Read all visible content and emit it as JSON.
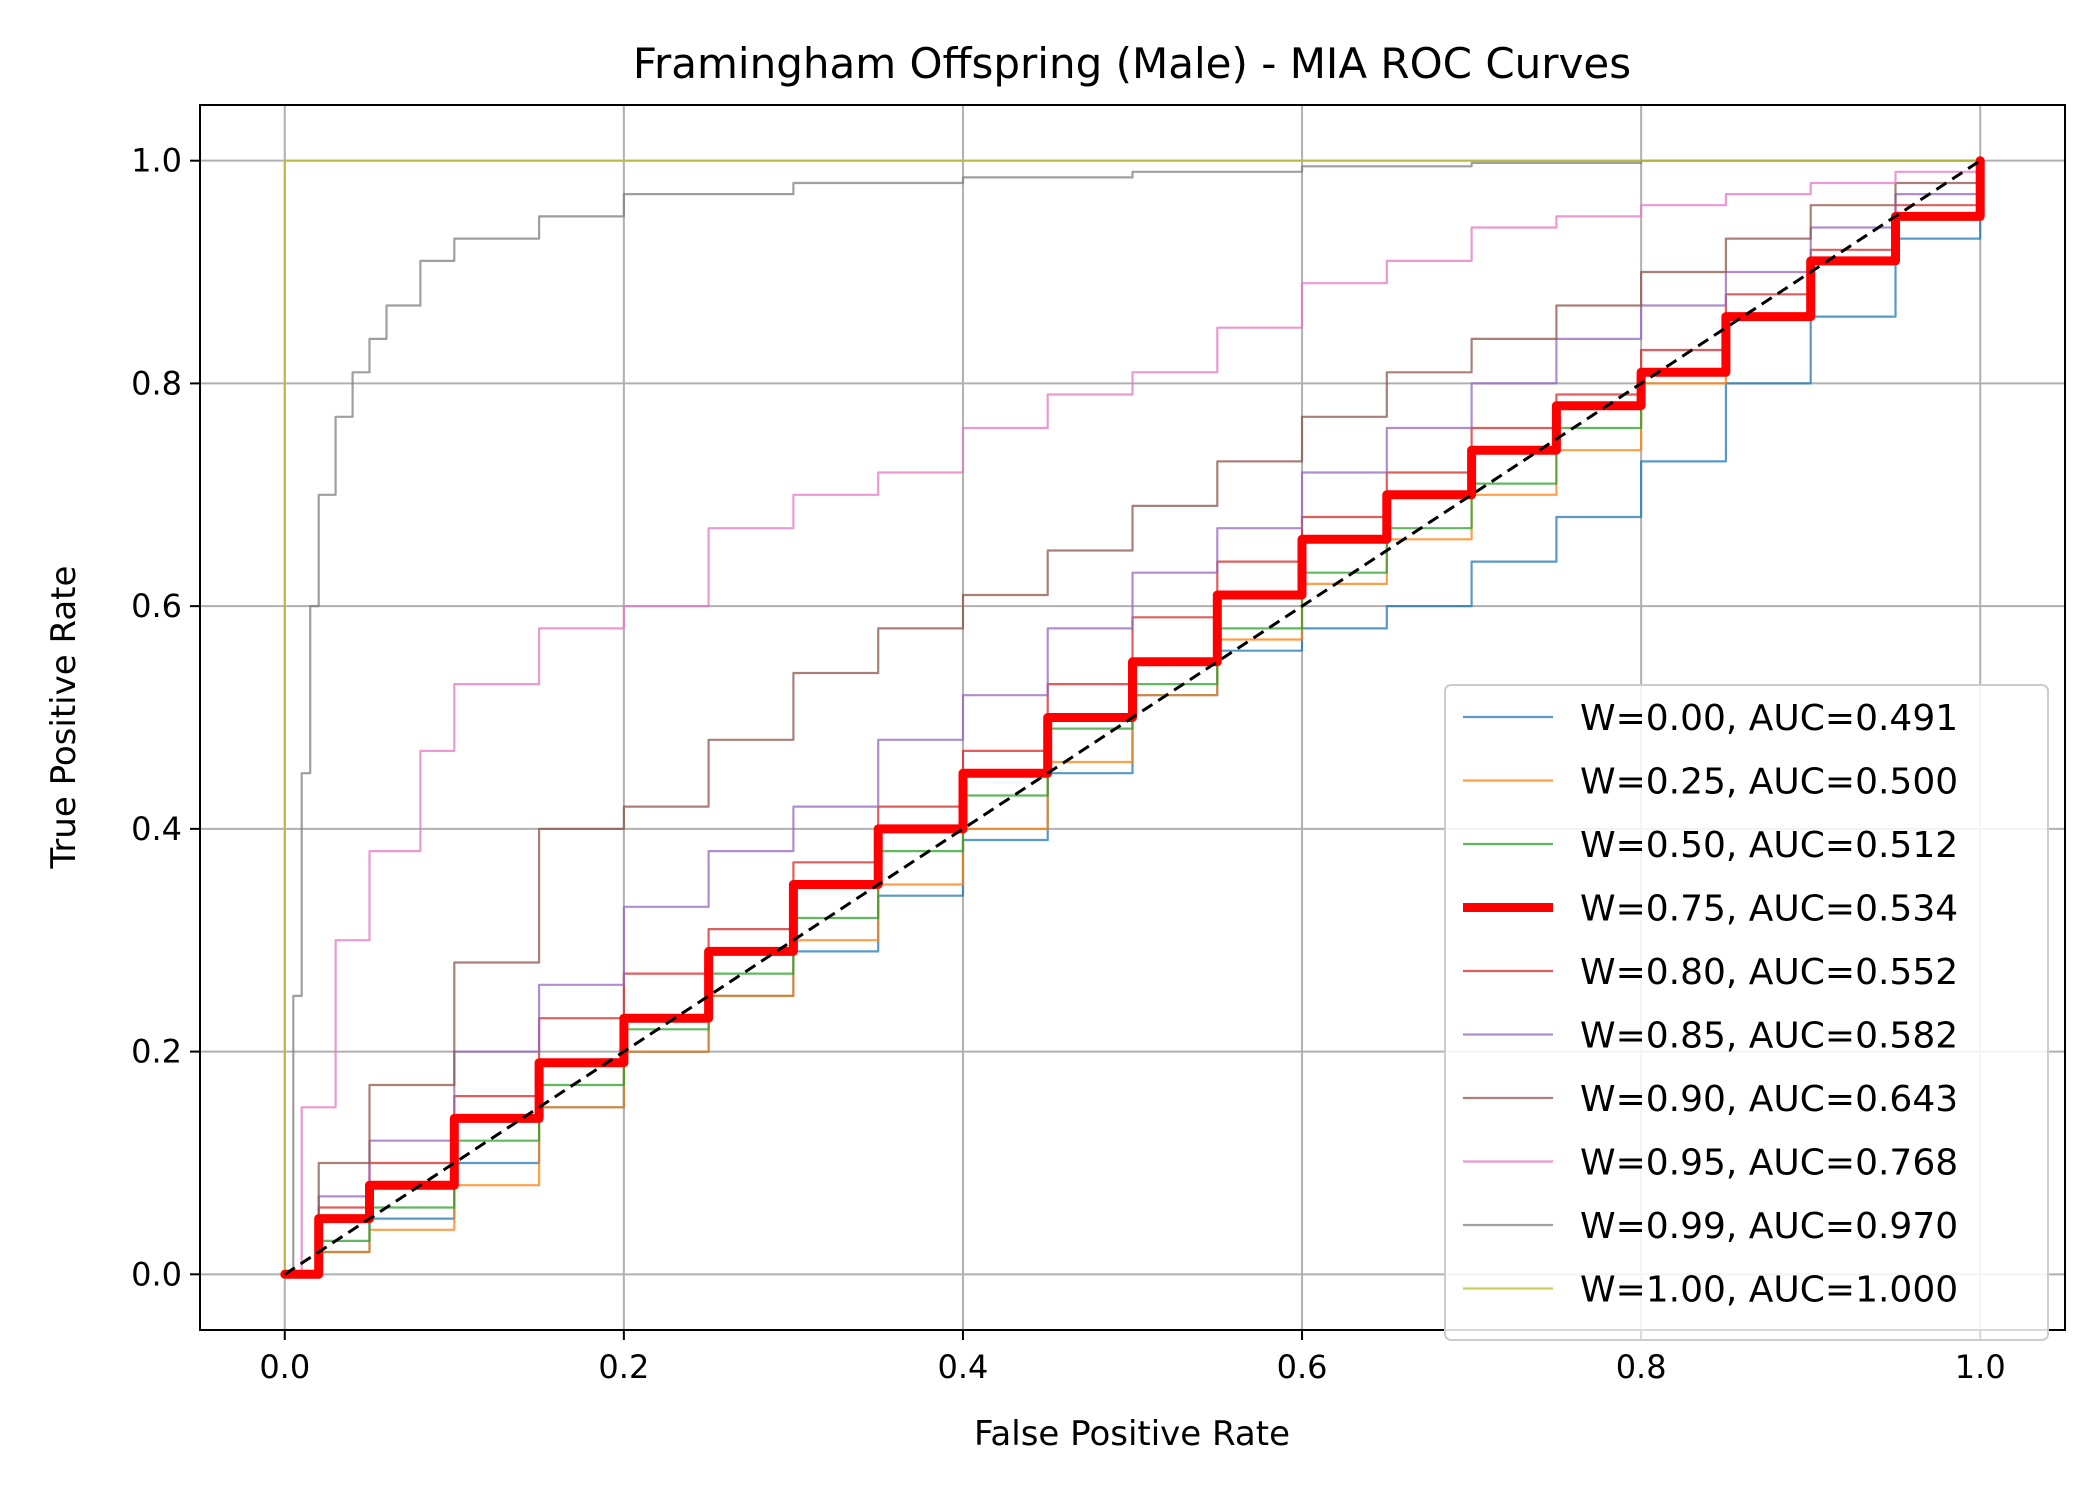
{
  "chart_data": {
    "type": "line",
    "title": "Framingham Offspring (Male) - MIA ROC Curves",
    "xlabel": "False Positive Rate",
    "ylabel": "True Positive Rate",
    "xlim": [
      -0.05,
      1.05
    ],
    "ylim": [
      -0.05,
      1.05
    ],
    "xticks": [
      "0.0",
      "0.2",
      "0.4",
      "0.6",
      "0.8",
      "1.0"
    ],
    "yticks": [
      "0.0",
      "0.2",
      "0.4",
      "0.6",
      "0.8",
      "1.0"
    ],
    "grid": true,
    "legend_position": "lower right",
    "series": [
      {
        "name": "W=0.00, AUC=0.491",
        "color": "#1f77b4",
        "emphasis": false,
        "x": [
          0,
          0.02,
          0.05,
          0.1,
          0.15,
          0.2,
          0.25,
          0.3,
          0.35,
          0.4,
          0.45,
          0.5,
          0.55,
          0.6,
          0.65,
          0.7,
          0.75,
          0.8,
          0.85,
          0.9,
          0.95,
          1.0
        ],
        "y": [
          0,
          0.02,
          0.05,
          0.1,
          0.15,
          0.2,
          0.25,
          0.29,
          0.34,
          0.39,
          0.45,
          0.52,
          0.56,
          0.58,
          0.6,
          0.64,
          0.68,
          0.73,
          0.8,
          0.86,
          0.93,
          1.0
        ]
      },
      {
        "name": "W=0.25, AUC=0.500",
        "color": "#ff7f0e",
        "emphasis": false,
        "x": [
          0,
          0.02,
          0.05,
          0.1,
          0.15,
          0.2,
          0.25,
          0.3,
          0.35,
          0.4,
          0.45,
          0.5,
          0.55,
          0.6,
          0.65,
          0.7,
          0.75,
          0.8,
          0.85,
          0.9,
          0.95,
          1.0
        ],
        "y": [
          0,
          0.02,
          0.04,
          0.08,
          0.15,
          0.2,
          0.25,
          0.3,
          0.35,
          0.4,
          0.46,
          0.52,
          0.57,
          0.62,
          0.66,
          0.7,
          0.74,
          0.8,
          0.86,
          0.91,
          0.95,
          1.0
        ]
      },
      {
        "name": "W=0.50, AUC=0.512",
        "color": "#2ca02c",
        "emphasis": false,
        "x": [
          0,
          0.02,
          0.05,
          0.1,
          0.15,
          0.2,
          0.25,
          0.3,
          0.35,
          0.4,
          0.45,
          0.5,
          0.55,
          0.6,
          0.65,
          0.7,
          0.75,
          0.8,
          0.85,
          0.9,
          0.95,
          1.0
        ],
        "y": [
          0,
          0.03,
          0.06,
          0.12,
          0.17,
          0.22,
          0.27,
          0.32,
          0.38,
          0.43,
          0.49,
          0.53,
          0.58,
          0.63,
          0.67,
          0.71,
          0.76,
          0.81,
          0.86,
          0.91,
          0.95,
          1.0
        ]
      },
      {
        "name": "W=0.75, AUC=0.534",
        "color": "#ff0000",
        "emphasis": true,
        "x": [
          0,
          0.02,
          0.05,
          0.1,
          0.15,
          0.2,
          0.25,
          0.3,
          0.35,
          0.4,
          0.45,
          0.5,
          0.55,
          0.6,
          0.65,
          0.7,
          0.75,
          0.8,
          0.85,
          0.9,
          0.95,
          1.0
        ],
        "y": [
          0,
          0.05,
          0.08,
          0.14,
          0.19,
          0.23,
          0.29,
          0.35,
          0.4,
          0.45,
          0.5,
          0.55,
          0.61,
          0.66,
          0.7,
          0.74,
          0.78,
          0.81,
          0.86,
          0.91,
          0.95,
          1.0
        ]
      },
      {
        "name": "W=0.80, AUC=0.552",
        "color": "#d62728",
        "emphasis": false,
        "x": [
          0,
          0.02,
          0.05,
          0.1,
          0.15,
          0.2,
          0.25,
          0.3,
          0.35,
          0.4,
          0.45,
          0.5,
          0.55,
          0.6,
          0.65,
          0.7,
          0.75,
          0.8,
          0.85,
          0.9,
          0.95,
          1.0
        ],
        "y": [
          0,
          0.06,
          0.1,
          0.16,
          0.23,
          0.27,
          0.31,
          0.37,
          0.42,
          0.47,
          0.53,
          0.59,
          0.64,
          0.68,
          0.72,
          0.76,
          0.79,
          0.83,
          0.88,
          0.92,
          0.96,
          1.0
        ]
      },
      {
        "name": "W=0.85, AUC=0.582",
        "color": "#9467bd",
        "emphasis": false,
        "x": [
          0,
          0.02,
          0.05,
          0.1,
          0.15,
          0.2,
          0.25,
          0.3,
          0.35,
          0.4,
          0.45,
          0.5,
          0.55,
          0.6,
          0.65,
          0.7,
          0.75,
          0.8,
          0.85,
          0.9,
          0.95,
          1.0
        ],
        "y": [
          0,
          0.07,
          0.12,
          0.2,
          0.26,
          0.33,
          0.38,
          0.42,
          0.48,
          0.52,
          0.58,
          0.63,
          0.67,
          0.72,
          0.76,
          0.8,
          0.84,
          0.87,
          0.9,
          0.94,
          0.97,
          1.0
        ]
      },
      {
        "name": "W=0.90, AUC=0.643",
        "color": "#8c564b",
        "emphasis": false,
        "x": [
          0,
          0.02,
          0.05,
          0.1,
          0.15,
          0.2,
          0.25,
          0.3,
          0.35,
          0.4,
          0.45,
          0.5,
          0.55,
          0.6,
          0.65,
          0.7,
          0.75,
          0.8,
          0.85,
          0.9,
          0.95,
          1.0
        ],
        "y": [
          0,
          0.1,
          0.17,
          0.28,
          0.4,
          0.42,
          0.48,
          0.54,
          0.58,
          0.61,
          0.65,
          0.69,
          0.73,
          0.77,
          0.81,
          0.84,
          0.87,
          0.9,
          0.93,
          0.96,
          0.98,
          1.0
        ]
      },
      {
        "name": "W=0.95, AUC=0.768",
        "color": "#e377c2",
        "emphasis": false,
        "x": [
          0,
          0.01,
          0.03,
          0.05,
          0.08,
          0.1,
          0.15,
          0.2,
          0.25,
          0.3,
          0.35,
          0.4,
          0.45,
          0.5,
          0.55,
          0.6,
          0.65,
          0.7,
          0.75,
          0.8,
          0.85,
          0.9,
          0.95,
          1.0
        ],
        "y": [
          0,
          0.15,
          0.3,
          0.38,
          0.47,
          0.53,
          0.58,
          0.6,
          0.67,
          0.7,
          0.72,
          0.76,
          0.79,
          0.81,
          0.85,
          0.89,
          0.91,
          0.94,
          0.95,
          0.96,
          0.97,
          0.98,
          0.99,
          1.0
        ]
      },
      {
        "name": "W=0.99, AUC=0.970",
        "color": "#7f7f7f",
        "emphasis": false,
        "x": [
          0,
          0.005,
          0.01,
          0.015,
          0.02,
          0.03,
          0.04,
          0.05,
          0.06,
          0.08,
          0.1,
          0.15,
          0.2,
          0.3,
          0.4,
          0.5,
          0.6,
          0.7,
          0.8,
          0.9,
          1.0
        ],
        "y": [
          0,
          0.25,
          0.45,
          0.6,
          0.7,
          0.77,
          0.81,
          0.84,
          0.87,
          0.91,
          0.93,
          0.95,
          0.97,
          0.98,
          0.985,
          0.99,
          0.995,
          0.998,
          1.0,
          1.0,
          1.0
        ]
      },
      {
        "name": "W=1.00, AUC=1.000",
        "color": "#bcbd22",
        "emphasis": false,
        "x": [
          0,
          0,
          1.0
        ],
        "y": [
          0,
          1.0,
          1.0
        ]
      }
    ],
    "reference_line": {
      "x": [
        0,
        1
      ],
      "y": [
        0,
        1
      ],
      "color": "#000000",
      "style": "dashed"
    }
  }
}
